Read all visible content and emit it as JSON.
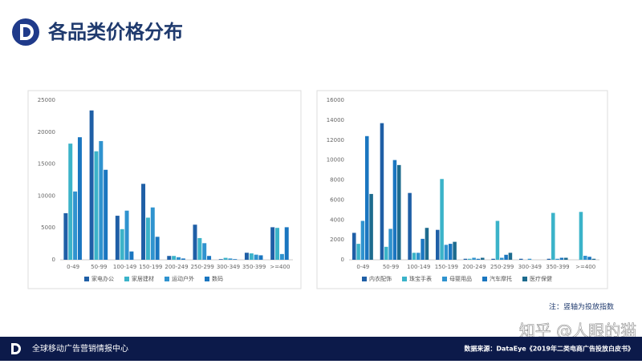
{
  "header": {
    "title": "各品类价格分布"
  },
  "chart_data": [
    {
      "type": "bar",
      "categories": [
        "0-49",
        "50-99",
        "100-149",
        "150-199",
        "200-249",
        "250-299",
        "300-349",
        "350-399",
        ">=400"
      ],
      "series": [
        {
          "name": "家电办公",
          "color": "#1f5fa6",
          "values": [
            7300,
            23400,
            6900,
            11900,
            600,
            5500,
            100,
            1100,
            5100
          ]
        },
        {
          "name": "家居建材",
          "color": "#3bb3c9",
          "values": [
            18200,
            17000,
            4800,
            6600,
            600,
            3400,
            300,
            1000,
            5000
          ]
        },
        {
          "name": "运动户外",
          "color": "#2f93cf",
          "values": [
            10700,
            18600,
            7700,
            8200,
            400,
            2600,
            200,
            800,
            900
          ]
        },
        {
          "name": "数码",
          "color": "#1a76c0",
          "values": [
            19200,
            14100,
            1300,
            3600,
            200,
            600,
            100,
            700,
            5100
          ]
        }
      ],
      "ylim": [
        0,
        25000
      ],
      "yticks": [
        0,
        5000,
        10000,
        15000,
        20000,
        25000
      ],
      "grid": false
    },
    {
      "type": "bar",
      "categories": [
        "0-49",
        "50-99",
        "100-149",
        "150-199",
        "200-249",
        "250-299",
        "300-349",
        "350-399",
        ">=400"
      ],
      "series": [
        {
          "name": "内衣配饰",
          "color": "#1f5fa6",
          "values": [
            2700,
            13700,
            6700,
            3000,
            100,
            100,
            100,
            100,
            0
          ]
        },
        {
          "name": "珠宝手表",
          "color": "#3bb3c9",
          "values": [
            1600,
            1300,
            700,
            8100,
            100,
            3900,
            0,
            4700,
            4800
          ]
        },
        {
          "name": "母婴用品",
          "color": "#2f93cf",
          "values": [
            3900,
            3100,
            700,
            1500,
            200,
            200,
            100,
            100,
            400
          ]
        },
        {
          "name": "汽车摩托",
          "color": "#1a76c0",
          "values": [
            12400,
            10000,
            2100,
            1600,
            100,
            500,
            0,
            200,
            300
          ]
        },
        {
          "name": "医疗保健",
          "color": "#1d6b8e",
          "values": [
            6600,
            9500,
            3200,
            1800,
            200,
            700,
            0,
            200,
            100
          ]
        }
      ],
      "ylim": [
        0,
        16000
      ],
      "yticks": [
        0,
        2000,
        4000,
        6000,
        8000,
        10000,
        12000,
        14000,
        16000
      ],
      "grid": false
    }
  ],
  "note": "注：竖轴为投放指数",
  "watermark": "知乎 @人眼的猫",
  "footer": {
    "org": "全球移动广告营销情报中心",
    "source": "数据来源：DataEye《2019年二类电商广告投放白皮书》"
  }
}
